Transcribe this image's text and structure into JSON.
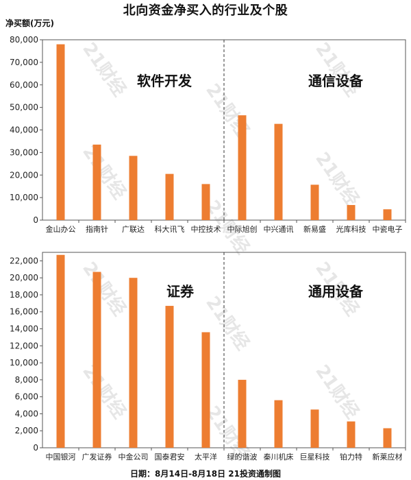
{
  "header": {
    "title": "北向资金净买入的行业及个股",
    "ylabel": "净买额(万元)",
    "footer": "日期：8月14日-8月18日 21投资通制图",
    "watermark": "21财经"
  },
  "colors": {
    "bar": "#ED7D31",
    "axis": "#555555",
    "divider": "#333333"
  },
  "chart_data": [
    {
      "type": "bar",
      "title": "",
      "ylabel": "净买额(万元)",
      "ylim": [
        0,
        80000
      ],
      "yticks": [
        0,
        10000,
        20000,
        30000,
        40000,
        50000,
        60000,
        70000,
        80000
      ],
      "ytick_labels": [
        "0",
        "10,000",
        "20,000",
        "30,000",
        "40,000",
        "50,000",
        "60,000",
        "70,000",
        "80,000"
      ],
      "groups": [
        {
          "name": "软件开发",
          "categories": [
            "金山办公",
            "指南针",
            "广联达",
            "科大讯飞",
            "中控技术"
          ],
          "values": [
            78000,
            33500,
            28500,
            20500,
            16000
          ]
        },
        {
          "name": "通信设备",
          "categories": [
            "中际旭创",
            "中兴通讯",
            "新易盛",
            "光库科技",
            "中瓷电子"
          ],
          "values": [
            46500,
            42700,
            15700,
            6700,
            4800
          ]
        }
      ]
    },
    {
      "type": "bar",
      "title": "",
      "ylim": [
        0,
        23000
      ],
      "yticks": [
        0,
        2000,
        4000,
        6000,
        8000,
        10000,
        12000,
        14000,
        16000,
        18000,
        20000,
        22000
      ],
      "ytick_labels": [
        "0",
        "2,000",
        "4,000",
        "6,000",
        "8,000",
        "10,000",
        "12,000",
        "14,000",
        "16,000",
        "18,000",
        "20,000",
        "22,000"
      ],
      "groups": [
        {
          "name": "证券",
          "categories": [
            "中国银河",
            "广发证券",
            "中金公司",
            "国泰君安",
            "太平洋"
          ],
          "values": [
            22700,
            20700,
            20000,
            16700,
            13600
          ]
        },
        {
          "name": "通用设备",
          "categories": [
            "绿的谐波",
            "秦川机床",
            "巨星科技",
            "铂力特",
            "新莱应材"
          ],
          "values": [
            8000,
            5600,
            4500,
            3100,
            2300
          ]
        }
      ]
    }
  ]
}
